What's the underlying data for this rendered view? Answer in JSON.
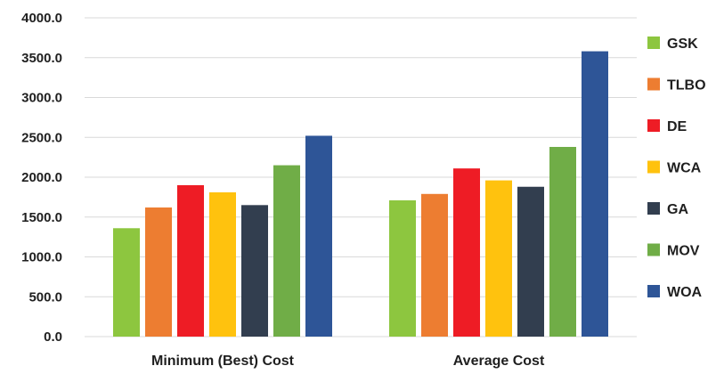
{
  "chart_data": {
    "type": "bar",
    "title": "",
    "xlabel": "",
    "ylabel": "",
    "categories": [
      "Minimum (Best) Cost",
      "Average Cost"
    ],
    "series": [
      {
        "name": "GSK",
        "color": "#8dc63f",
        "values": [
          1360,
          1710
        ]
      },
      {
        "name": "TLBO",
        "color": "#ed7d31",
        "values": [
          1620,
          1790
        ]
      },
      {
        "name": "DE",
        "color": "#ee1c25",
        "values": [
          1900,
          2110
        ]
      },
      {
        "name": "WCA",
        "color": "#ffc20e",
        "values": [
          1810,
          1960
        ]
      },
      {
        "name": "GA",
        "color": "#323e4f",
        "values": [
          1650,
          1880
        ]
      },
      {
        "name": "MOV",
        "color": "#70ad47",
        "values": [
          2150,
          2380
        ]
      },
      {
        "name": "WOA",
        "color": "#2e5597",
        "values": [
          2520,
          3580
        ]
      }
    ],
    "ylim": [
      0,
      4000
    ],
    "yticks": [
      "0.0",
      "500.0",
      "1000.0",
      "1500.0",
      "2000.0",
      "2500.0",
      "3000.0",
      "3500.0",
      "4000.0"
    ],
    "grid": true,
    "legend_position": "right"
  }
}
